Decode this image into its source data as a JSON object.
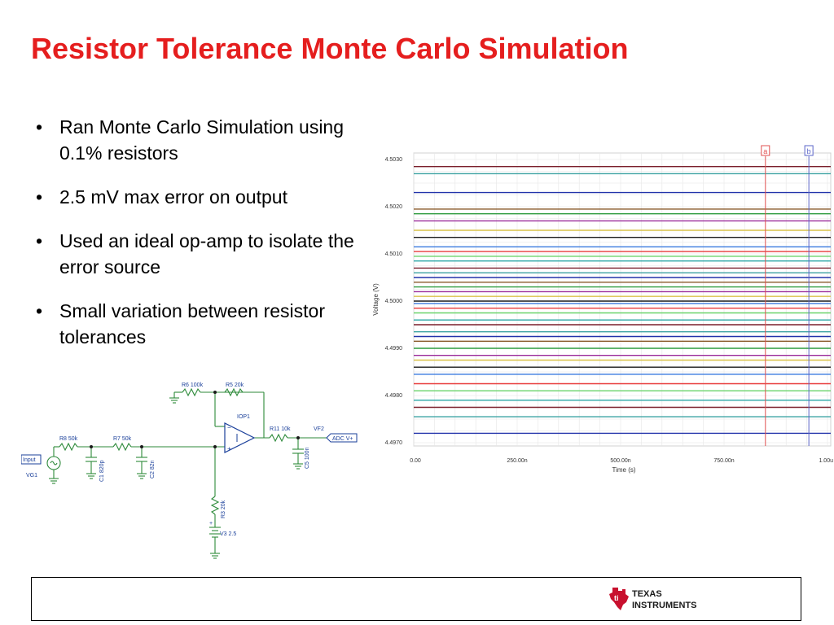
{
  "slide": {
    "title": "Resistor Tolerance Monte Carlo Simulation",
    "title_color": "#e51e1e"
  },
  "bullets": [
    {
      "text": "Ran Monte Carlo Simulation using 0.1% resistors"
    },
    {
      "text": "2.5 mV max error on output"
    },
    {
      "text": "Used an ideal op-amp to isolate the error source"
    },
    {
      "text": "Small variation between resistor tolerances"
    }
  ],
  "schematic": {
    "components": {
      "r6": "R6 100k",
      "r5": "R5 20k",
      "iop1": "IOP1",
      "r11": "R11 10k",
      "vf2": "VF2",
      "adc": "ADC V+",
      "r8": "R8 50k",
      "r7": "R7 50k",
      "input": "Input",
      "vg1": "VG1",
      "c1": "C1 820p",
      "c2": "C2 82n",
      "c5": "C5 100n",
      "r3": "R3 20k",
      "v3": "V3 2.5"
    },
    "colors": {
      "wire": "#2d8a3a",
      "label": "#1a3f9a"
    }
  },
  "chart_data": {
    "type": "line",
    "title": "",
    "xlabel": "Time (s)",
    "ylabel": "Voltage (V)",
    "xlim": [
      0,
      1.0
    ],
    "ylim": [
      4.497,
      4.503
    ],
    "x_ticks": [
      "0.00",
      "250.00n",
      "500.00n",
      "750.00n",
      "1.00u"
    ],
    "y_ticks": [
      "4.5030",
      "4.5020",
      "4.5010",
      "4.5000",
      "4.4990",
      "4.4980",
      "4.4970"
    ],
    "grid": true,
    "cursors": [
      {
        "label": "a",
        "x": 0.85,
        "color": "#e05050"
      },
      {
        "label": "b",
        "x": 0.955,
        "color": "#5a64c8"
      }
    ],
    "series_colors": [
      "#7a1f2b",
      "#3da3a3",
      "#2233aa",
      "#8a5a2a",
      "#2e9b3e",
      "#9a2a9a",
      "#d9c24a",
      "#1a1a1a",
      "#3a7adf",
      "#e83a3a",
      "#6ad36a",
      "#2aa6a6"
    ],
    "series_levels": [
      4.50285,
      4.5027,
      4.5023,
      4.50195,
      4.50185,
      4.5017,
      4.5015,
      4.50135,
      4.50115,
      4.50105,
      4.50095,
      4.50085,
      4.5007,
      4.5006,
      4.5005,
      4.5004,
      4.5003,
      4.5002,
      4.5001,
      4.5,
      4.49995,
      4.49985,
      4.49975,
      4.4996,
      4.4995,
      4.49935,
      4.49925,
      4.49915,
      4.499,
      4.49885,
      4.49875,
      4.4986,
      4.49845,
      4.49825,
      4.4981,
      4.4979,
      4.49775,
      4.49755,
      4.4972
    ]
  },
  "footer": {
    "logo_line1": "TEXAS",
    "logo_line2": "INSTRUMENTS",
    "logo_color": "#c8102e"
  }
}
